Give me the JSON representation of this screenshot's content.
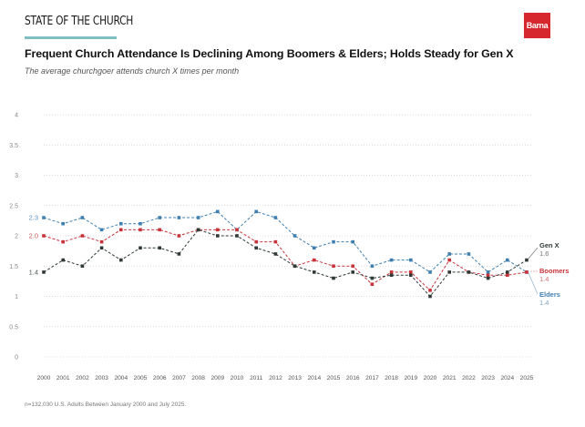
{
  "header": {
    "kicker": "STATE OF THE CHURCH",
    "logo_text": "Barna",
    "title": "Frequent Church Attendance Is Declining Among Boomers & Elders; Holds Steady for Gen X",
    "subtitle": "The average churchgoer attends church X times per month"
  },
  "footnote": "n=132,030 U.S. Adults Between January 2000 and July 2025.",
  "colors": {
    "accent_rule": "#7fbfc2",
    "brand": "#d6262e"
  },
  "chart_data": {
    "type": "line",
    "title": "Frequent Church Attendance Is Declining Among Boomers & Elders; Holds Steady for Gen X",
    "subtitle": "The average churchgoer attends church X times per month",
    "xlabel": "",
    "ylabel": "",
    "ylim": [
      0,
      4
    ],
    "yticks": [
      0,
      0.5,
      1,
      1.5,
      2,
      2.5,
      3,
      3.5,
      4
    ],
    "ytick_labels": [
      "0",
      "0.5",
      "1",
      "1.5",
      "2",
      "2.5",
      "3",
      "3.5",
      "4"
    ],
    "grid": true,
    "x": [
      "2000",
      "2001",
      "2002",
      "2003",
      "2004",
      "2005",
      "2006",
      "2007",
      "2008",
      "2009",
      "2010",
      "2011",
      "2012",
      "2013",
      "2014",
      "2015",
      "2016",
      "2017",
      "2018",
      "2019",
      "2020",
      "2021",
      "2022",
      "2023",
      "2024",
      "2025"
    ],
    "series": [
      {
        "name": "Elders",
        "color": "#3f7fb0",
        "start_label": "2.3",
        "end_label": "1.4",
        "values": [
          2.3,
          2.2,
          2.3,
          2.1,
          2.2,
          2.2,
          2.3,
          2.3,
          2.3,
          2.4,
          2.1,
          2.4,
          2.3,
          2.0,
          1.8,
          1.9,
          1.9,
          1.5,
          1.6,
          1.6,
          1.4,
          1.7,
          1.7,
          1.4,
          1.6,
          1.4
        ]
      },
      {
        "name": "Boomers",
        "color": "#c8333a",
        "start_label": "2.0",
        "end_label": "1.4",
        "values": [
          2.0,
          1.9,
          2.0,
          1.9,
          2.1,
          2.1,
          2.1,
          2.0,
          2.1,
          2.1,
          2.1,
          1.9,
          1.9,
          1.5,
          1.6,
          1.5,
          1.5,
          1.2,
          1.4,
          1.4,
          1.1,
          1.6,
          1.4,
          1.35,
          1.35,
          1.4
        ]
      },
      {
        "name": "Gen X",
        "color": "#2f3a36",
        "start_label": "1.4",
        "end_label": "1.6",
        "values": [
          1.4,
          1.6,
          1.5,
          1.8,
          1.6,
          1.8,
          1.8,
          1.7,
          2.1,
          2.0,
          2.0,
          1.8,
          1.7,
          1.5,
          1.4,
          1.3,
          1.4,
          1.3,
          1.35,
          1.35,
          1.0,
          1.4,
          1.4,
          1.3,
          1.4,
          1.6
        ]
      }
    ],
    "legend": "right, end-of-line labels"
  }
}
